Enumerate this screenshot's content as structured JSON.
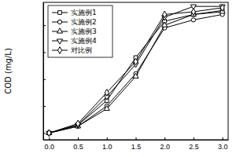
{
  "chart_data": {
    "type": "line",
    "y_label": "COD (mg/L)",
    "x": [
      0.0,
      0.5,
      1.0,
      1.5,
      2.0,
      2.5,
      3.0
    ],
    "xlim": [
      -0.1,
      3.1
    ],
    "xticks": [
      {
        "value": 0,
        "label": "0.0"
      },
      {
        "value": 0.5,
        "label": "0.5"
      },
      {
        "value": 1,
        "label": "1.0"
      },
      {
        "value": 1.5,
        "label": "1.5"
      },
      {
        "value": 2,
        "label": "2.0"
      },
      {
        "value": 2.5,
        "label": "2.5"
      },
      {
        "value": 3,
        "label": "3.0"
      }
    ],
    "ylim": [
      -5,
      97
    ],
    "yticks": [
      0,
      20,
      40,
      60,
      80
    ],
    "tick_labels": "x",
    "legend": "upper left",
    "series": [
      {
        "name": "实施例1",
        "color": "#000000",
        "marker": "square",
        "values": [
          0,
          6,
          24,
          56,
          83,
          88,
          91
        ]
      },
      {
        "name": "实施例2",
        "color": "#000000",
        "marker": "circle",
        "values": [
          0,
          5,
          20,
          44,
          78,
          84,
          88
        ]
      },
      {
        "name": "实施例3",
        "color": "#000000",
        "marker": "triangle-up",
        "values": [
          0,
          5,
          18,
          42,
          80,
          88,
          90
        ]
      },
      {
        "name": "实施例4",
        "color": "#000000",
        "marker": "triangle-down",
        "values": [
          0,
          6,
          27,
          51,
          86,
          94,
          94
        ]
      },
      {
        "name": "对比例",
        "color": "#000000",
        "marker": "diamond",
        "values": [
          0,
          7,
          30,
          53,
          88,
          90,
          93
        ]
      }
    ]
  }
}
